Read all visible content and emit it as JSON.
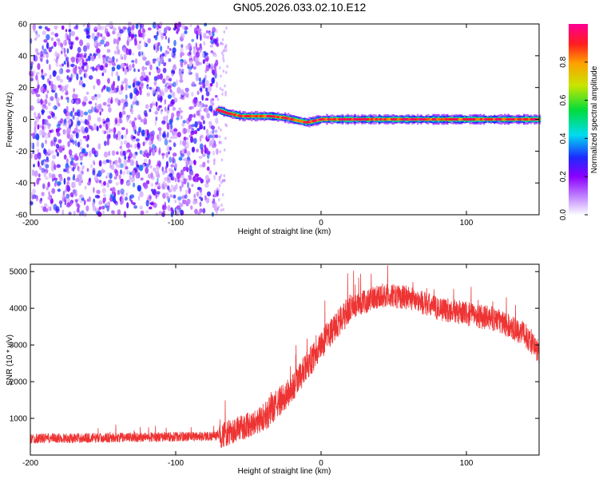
{
  "title": "GN05.2026.033.02.10.E12",
  "chart_data": [
    {
      "type": "heatmap",
      "name": "spectrogram",
      "xlabel": "Height of straight line (km)",
      "ylabel": "Frequency (Hz)",
      "xlim": [
        -200,
        150
      ],
      "ylim": [
        -60,
        60
      ],
      "xticks": [
        -200,
        -100,
        0,
        100
      ],
      "yticks": [
        -60,
        -40,
        -20,
        0,
        20,
        40,
        60
      ],
      "noise_region_x": [
        -200,
        -71
      ],
      "signal_track": {
        "x": [
          -71,
          -65,
          -55,
          -45,
          -35,
          -25,
          -15,
          -10,
          0,
          20,
          40,
          60,
          80,
          100,
          120,
          150
        ],
        "frequency": [
          6,
          4,
          2,
          2,
          2,
          1,
          -1,
          -2,
          0,
          0,
          0,
          0,
          0,
          0,
          0,
          0
        ]
      },
      "colorbar": {
        "label": "Normalized spectral amplitude",
        "range": [
          0,
          1
        ],
        "ticks": [
          0.0,
          0.2,
          0.4,
          0.6,
          0.8
        ]
      }
    },
    {
      "type": "line",
      "name": "snr",
      "xlabel": "Height of straight line (km)",
      "ylabel": "SNR (10 * v/v)",
      "xlim": [
        -200,
        150
      ],
      "ylim": [
        0,
        5200
      ],
      "xticks": [
        -200,
        -100,
        0,
        100
      ],
      "yticks": [
        1000,
        2000,
        3000,
        4000,
        5000
      ],
      "color": "#ee3333",
      "trend": {
        "x": [
          -200,
          -150,
          -100,
          -70,
          -60,
          -40,
          -20,
          0,
          20,
          40,
          60,
          80,
          100,
          120,
          140,
          150
        ],
        "y": [
          450,
          470,
          500,
          520,
          650,
          1000,
          1800,
          3000,
          4000,
          4350,
          4300,
          4000,
          3850,
          3700,
          3300,
          2800
        ]
      }
    }
  ]
}
